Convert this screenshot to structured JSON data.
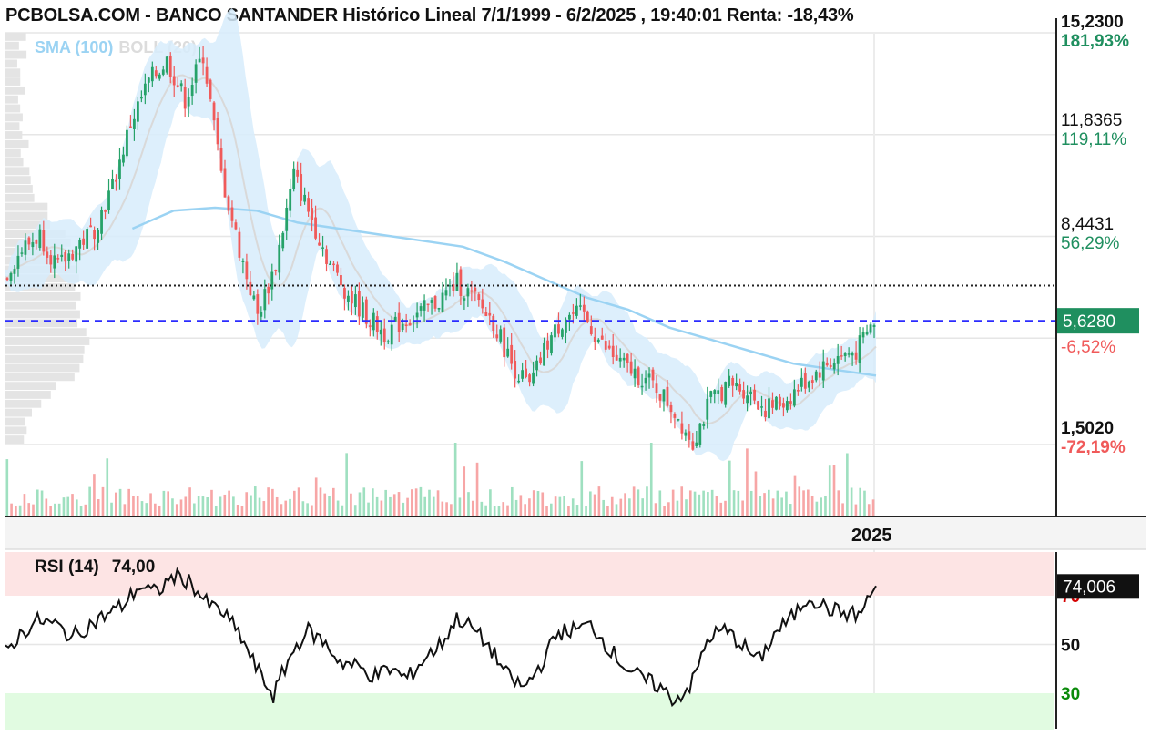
{
  "header": {
    "title": "PCBOLSA.COM - BANCO SANTANDER Histórico Lineal 7/1/1999 - 6/2/2025 , 19:40:01 Renta: -18,43%"
  },
  "legend": {
    "sma": "SMA (100)",
    "boll": "BOLL (20)"
  },
  "colors": {
    "up": "#26a269",
    "down": "#f05a5a",
    "sma": "#9bd3f3",
    "band_fill": "#d7ecfb",
    "boll_mid": "#d9d9d9",
    "current": "#1f8f5f",
    "dashed": "#2b2bff",
    "overbought": "#fde4e4",
    "oversold": "#e1fbe1",
    "pos": "#1f8f5f",
    "neg": "#f05a5a"
  },
  "price_axis": [
    {
      "price": "15,2300",
      "pct": "181,93%",
      "bold": true,
      "pct_color": "pos"
    },
    {
      "price": "11,8365",
      "pct": "119,11%",
      "bold": false,
      "pct_color": "pos"
    },
    {
      "price": "8,4431",
      "pct": "56,29%",
      "bold": false,
      "pct_color": "pos"
    },
    {
      "price": "",
      "pct": "-6,52%",
      "bold": false,
      "pct_color": "neg"
    },
    {
      "price": "1,5020",
      "pct": "-72,19%",
      "bold": true,
      "pct_color": "neg"
    }
  ],
  "current_price": "5,6280",
  "x_axis": {
    "year_label": "2025"
  },
  "rsi": {
    "label": "RSI (14)",
    "value_text": "74,00",
    "current": "74,006",
    "levels": [
      {
        "value": 70,
        "label": "70",
        "color": "#d40000"
      },
      {
        "value": 50,
        "label": "50",
        "color": "#111111"
      },
      {
        "value": 30,
        "label": "30",
        "color": "#0a8a0a"
      }
    ]
  },
  "chart_data": [
    {
      "type": "line",
      "title": "PCBOLSA.COM - BANCO SANTANDER Histórico Lineal 7/1/1999 - 6/2/2025 , 19:40:01 Renta: -18,43%",
      "series": [
        {
          "name": "SMA (100)",
          "values": [
            8.7,
            9.3,
            9.4,
            9.3,
            8.9,
            8.7,
            8.5,
            8.3,
            8.1,
            7.6,
            7.0,
            6.4,
            6.0,
            5.4,
            5.0,
            4.6,
            4.2,
            4.0,
            3.8
          ]
        },
        {
          "name": "BOLL (20)"
        }
      ],
      "close_path": [
        [
          0,
          7.1
        ],
        [
          2,
          8.0
        ],
        [
          4,
          8.5
        ],
        [
          6,
          7.4
        ],
        [
          8,
          8.1
        ],
        [
          10,
          8.7
        ],
        [
          12,
          10.1
        ],
        [
          14,
          12.2
        ],
        [
          16,
          13.6
        ],
        [
          18,
          14.3
        ],
        [
          20,
          13.0
        ],
        [
          22,
          14.5
        ],
        [
          24,
          10.5
        ],
        [
          26,
          8.0
        ],
        [
          28,
          5.8
        ],
        [
          30,
          7.5
        ],
        [
          32,
          10.5
        ],
        [
          34,
          9.0
        ],
        [
          36,
          7.5
        ],
        [
          38,
          6.5
        ],
        [
          40,
          5.8
        ],
        [
          42,
          5.2
        ],
        [
          44,
          5.6
        ],
        [
          46,
          5.9
        ],
        [
          48,
          6.3
        ],
        [
          50,
          6.9
        ],
        [
          52,
          6.3
        ],
        [
          54,
          5.6
        ],
        [
          56,
          4.2
        ],
        [
          58,
          3.4
        ],
        [
          60,
          4.9
        ],
        [
          62,
          5.8
        ],
        [
          64,
          5.8
        ],
        [
          66,
          4.8
        ],
        [
          68,
          4.2
        ],
        [
          70,
          3.8
        ],
        [
          72,
          3.4
        ],
        [
          74,
          2.6
        ],
        [
          76,
          1.6
        ],
        [
          78,
          3.0
        ],
        [
          80,
          3.5
        ],
        [
          82,
          3.3
        ],
        [
          84,
          2.7
        ],
        [
          86,
          2.9
        ],
        [
          88,
          3.5
        ],
        [
          90,
          4.0
        ],
        [
          92,
          4.4
        ],
        [
          94,
          4.6
        ],
        [
          96,
          5.6
        ]
      ],
      "volume_relative": "daily bars",
      "reference_lines": [
        {
          "type": "dotted",
          "price": 6.8
        },
        {
          "type": "dashed",
          "price": 5.628
        }
      ],
      "ylim": [
        1.502,
        15.23
      ],
      "xlabel": "2025"
    },
    {
      "type": "line",
      "title": "RSI (14)",
      "values": [
        47,
        55,
        60,
        58,
        53,
        58,
        62,
        66,
        74,
        71,
        78,
        76,
        67,
        63,
        54,
        40,
        29,
        45,
        56,
        51,
        43,
        41,
        37,
        40,
        36,
        44,
        50,
        61,
        56,
        48,
        37,
        32,
        42,
        55,
        56,
        58,
        49,
        41,
        36,
        33,
        27,
        34,
        53,
        56,
        50,
        43,
        55,
        61,
        70,
        65,
        63,
        62,
        74
      ],
      "ylim": [
        0,
        100
      ],
      "levels": [
        70,
        50,
        30
      ]
    }
  ]
}
